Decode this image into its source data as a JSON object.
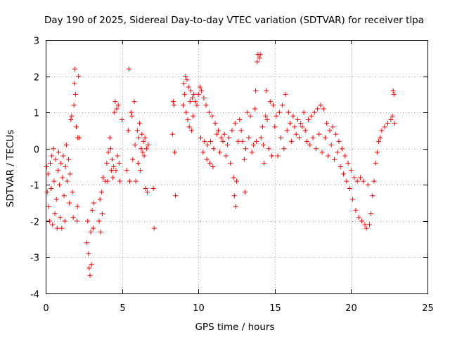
{
  "chart_data": {
    "type": "scatter",
    "title": "Day 190 of 2025, Sidereal Day-to-day VTEC variation (SDTVAR) for receiver tlpa",
    "xlabel": "GPS time / hours",
    "ylabel": "SDTVAR / TECUs",
    "xlim": [
      0,
      25
    ],
    "ylim": [
      -4,
      3
    ],
    "xticks": [
      0,
      5,
      10,
      15,
      20,
      25
    ],
    "yticks": [
      -4,
      -3,
      -2,
      -1,
      0,
      1,
      2,
      3
    ],
    "grid": true,
    "marker": "plus",
    "color": "#ff0000",
    "series": [
      {
        "name": "tlpa",
        "points": [
          [
            0.05,
            -0.5
          ],
          [
            0.1,
            -1.2
          ],
          [
            0.15,
            -0.7
          ],
          [
            0.2,
            -1.6
          ],
          [
            0.25,
            -2.0
          ],
          [
            0.3,
            -0.4
          ],
          [
            0.35,
            -1.1
          ],
          [
            0.4,
            -0.2
          ],
          [
            0.45,
            -2.1
          ],
          [
            0.5,
            0.0
          ],
          [
            0.55,
            -0.9
          ],
          [
            0.6,
            -1.8
          ],
          [
            0.65,
            -0.3
          ],
          [
            0.7,
            -1.4
          ],
          [
            0.75,
            -2.2
          ],
          [
            0.8,
            -0.6
          ],
          [
            0.85,
            -0.1
          ],
          [
            0.9,
            -1.0
          ],
          [
            0.95,
            -1.9
          ],
          [
            1.0,
            -0.4
          ],
          [
            1.05,
            -2.2
          ],
          [
            1.1,
            -0.8
          ],
          [
            1.15,
            -0.2
          ],
          [
            1.2,
            -1.3
          ],
          [
            1.25,
            -2.0
          ],
          [
            1.3,
            -0.5
          ],
          [
            1.35,
            0.1
          ],
          [
            1.4,
            -0.9
          ],
          [
            1.5,
            -0.3
          ],
          [
            1.55,
            -1.5
          ],
          [
            1.6,
            -0.7
          ],
          [
            1.65,
            0.8
          ],
          [
            1.7,
            0.9
          ],
          [
            1.75,
            -1.2
          ],
          [
            1.8,
            -1.9
          ],
          [
            1.85,
            1.2
          ],
          [
            1.88,
            1.8
          ],
          [
            1.9,
            2.2
          ],
          [
            1.95,
            1.5
          ],
          [
            2.0,
            0.6
          ],
          [
            2.05,
            -2.0
          ],
          [
            2.08,
            -1.6
          ],
          [
            2.1,
            0.3
          ],
          [
            2.15,
            2.0
          ],
          [
            2.2,
            0.3
          ],
          [
            2.7,
            -2.6
          ],
          [
            2.75,
            -2.0
          ],
          [
            2.8,
            -2.9
          ],
          [
            2.85,
            -3.3
          ],
          [
            2.9,
            -3.5
          ],
          [
            2.95,
            -2.3
          ],
          [
            3.0,
            -3.2
          ],
          [
            3.05,
            -1.7
          ],
          [
            3.1,
            -2.2
          ],
          [
            3.15,
            -1.5
          ],
          [
            3.5,
            -2.0
          ],
          [
            3.55,
            -1.4
          ],
          [
            3.6,
            -2.3
          ],
          [
            3.65,
            -1.2
          ],
          [
            3.7,
            -1.8
          ],
          [
            3.75,
            -0.8
          ],
          [
            3.9,
            -0.9
          ],
          [
            4.0,
            -0.4
          ],
          [
            4.05,
            -0.9
          ],
          [
            4.1,
            -0.1
          ],
          [
            4.2,
            0.3
          ],
          [
            4.25,
            0.0
          ],
          [
            4.3,
            -0.6
          ],
          [
            4.35,
            -0.3
          ],
          [
            4.4,
            -0.8
          ],
          [
            4.45,
            -0.5
          ],
          [
            4.5,
            1.0
          ],
          [
            4.55,
            1.3
          ],
          [
            4.6,
            -0.6
          ],
          [
            4.65,
            1.1
          ],
          [
            4.7,
            -0.2
          ],
          [
            4.75,
            1.2
          ],
          [
            4.8,
            -0.4
          ],
          [
            4.85,
            -0.9
          ],
          [
            5.0,
            0.8
          ],
          [
            5.3,
            -0.6
          ],
          [
            5.4,
            0.5
          ],
          [
            5.45,
            2.2
          ],
          [
            5.5,
            -0.9
          ],
          [
            5.6,
            1.0
          ],
          [
            5.65,
            0.9
          ],
          [
            5.7,
            -0.3
          ],
          [
            5.8,
            1.3
          ],
          [
            5.85,
            0.1
          ],
          [
            5.9,
            -0.9
          ],
          [
            6.0,
            0.5
          ],
          [
            6.05,
            -0.4
          ],
          [
            6.1,
            0.3
          ],
          [
            6.15,
            0.7
          ],
          [
            6.2,
            -0.6
          ],
          [
            6.25,
            0.0
          ],
          [
            6.3,
            0.4
          ],
          [
            6.35,
            -0.1
          ],
          [
            6.4,
            0.2
          ],
          [
            6.45,
            -0.2
          ],
          [
            6.5,
            0.3
          ],
          [
            6.55,
            -1.1
          ],
          [
            6.6,
            0.0
          ],
          [
            6.65,
            -1.2
          ],
          [
            6.7,
            0.1
          ],
          [
            7.05,
            -1.1
          ],
          [
            7.1,
            -2.2
          ],
          [
            8.3,
            0.4
          ],
          [
            8.35,
            1.3
          ],
          [
            8.4,
            1.2
          ],
          [
            8.45,
            -0.1
          ],
          [
            8.5,
            -1.3
          ],
          [
            9.0,
            1.2
          ],
          [
            9.05,
            1.8
          ],
          [
            9.1,
            1.5
          ],
          [
            9.15,
            2.0
          ],
          [
            9.2,
            1.0
          ],
          [
            9.25,
            1.9
          ],
          [
            9.3,
            0.8
          ],
          [
            9.35,
            1.7
          ],
          [
            9.4,
            0.6
          ],
          [
            9.45,
            1.3
          ],
          [
            9.5,
            1.6
          ],
          [
            9.55,
            0.5
          ],
          [
            9.6,
            1.4
          ],
          [
            9.65,
            0.9
          ],
          [
            9.7,
            1.5
          ],
          [
            9.8,
            1.3
          ],
          [
            9.9,
            1.2
          ],
          [
            10.0,
            1.5
          ],
          [
            10.1,
            1.7
          ],
          [
            10.15,
            0.3
          ],
          [
            10.2,
            1.6
          ],
          [
            10.3,
            -0.1
          ],
          [
            10.35,
            1.4
          ],
          [
            10.4,
            0.2
          ],
          [
            10.5,
            1.2
          ],
          [
            10.55,
            -0.3
          ],
          [
            10.6,
            0.1
          ],
          [
            10.7,
            1.0
          ],
          [
            10.75,
            -0.4
          ],
          [
            10.8,
            0.2
          ],
          [
            10.9,
            0.9
          ],
          [
            10.95,
            -0.5
          ],
          [
            11.0,
            0.0
          ],
          [
            11.1,
            0.7
          ],
          [
            11.2,
            0.4
          ],
          [
            11.3,
            0.5
          ],
          [
            11.4,
            -0.1
          ],
          [
            11.5,
            0.3
          ],
          [
            11.6,
            0.2
          ],
          [
            11.7,
            0.4
          ],
          [
            11.8,
            -0.2
          ],
          [
            11.9,
            0.1
          ],
          [
            12.0,
            0.3
          ],
          [
            12.1,
            -0.4
          ],
          [
            12.2,
            0.5
          ],
          [
            12.3,
            -0.8
          ],
          [
            12.35,
            -1.3
          ],
          [
            12.4,
            0.7
          ],
          [
            12.45,
            -1.6
          ],
          [
            12.5,
            -0.9
          ],
          [
            12.6,
            0.2
          ],
          [
            12.7,
            0.8
          ],
          [
            12.8,
            0.5
          ],
          [
            12.9,
            0.2
          ],
          [
            13.0,
            -0.3
          ],
          [
            13.05,
            -1.2
          ],
          [
            13.1,
            0.0
          ],
          [
            13.2,
            1.0
          ],
          [
            13.3,
            0.3
          ],
          [
            13.4,
            0.9
          ],
          [
            13.5,
            -0.1
          ],
          [
            13.6,
            0.1
          ],
          [
            13.7,
            1.1
          ],
          [
            13.75,
            1.6
          ],
          [
            13.8,
            0.2
          ],
          [
            13.85,
            2.4
          ],
          [
            13.9,
            2.6
          ],
          [
            14.0,
            2.5
          ],
          [
            14.05,
            2.6
          ],
          [
            14.1,
            0.3
          ],
          [
            14.2,
            0.6
          ],
          [
            14.25,
            0.1
          ],
          [
            14.3,
            -0.4
          ],
          [
            14.4,
            0.9
          ],
          [
            14.45,
            1.6
          ],
          [
            14.5,
            0.8
          ],
          [
            14.6,
            0.0
          ],
          [
            14.7,
            1.3
          ],
          [
            14.8,
            -0.2
          ],
          [
            14.9,
            1.2
          ],
          [
            15.0,
            0.6
          ],
          [
            15.1,
            0.9
          ],
          [
            15.2,
            -0.2
          ],
          [
            15.3,
            1.0
          ],
          [
            15.4,
            0.3
          ],
          [
            15.5,
            1.2
          ],
          [
            15.6,
            0.0
          ],
          [
            15.7,
            1.5
          ],
          [
            15.8,
            0.5
          ],
          [
            15.9,
            1.0
          ],
          [
            16.0,
            0.7
          ],
          [
            16.1,
            0.2
          ],
          [
            16.2,
            0.9
          ],
          [
            16.3,
            0.6
          ],
          [
            16.4,
            0.4
          ],
          [
            16.5,
            0.8
          ],
          [
            16.6,
            0.3
          ],
          [
            16.7,
            0.7
          ],
          [
            16.8,
            0.6
          ],
          [
            16.9,
            1.0
          ],
          [
            17.0,
            0.5
          ],
          [
            17.1,
            0.2
          ],
          [
            17.2,
            0.8
          ],
          [
            17.3,
            0.1
          ],
          [
            17.4,
            0.9
          ],
          [
            17.5,
            0.3
          ],
          [
            17.6,
            1.0
          ],
          [
            17.7,
            0.0
          ],
          [
            17.8,
            1.1
          ],
          [
            17.9,
            0.4
          ],
          [
            18.0,
            1.2
          ],
          [
            18.1,
            -0.1
          ],
          [
            18.2,
            1.1
          ],
          [
            18.3,
            0.3
          ],
          [
            18.4,
            0.7
          ],
          [
            18.5,
            -0.2
          ],
          [
            18.6,
            0.5
          ],
          [
            18.7,
            0.1
          ],
          [
            18.8,
            0.6
          ],
          [
            18.9,
            -0.3
          ],
          [
            19.0,
            0.4
          ],
          [
            19.1,
            -0.1
          ],
          [
            19.2,
            0.2
          ],
          [
            19.3,
            -0.5
          ],
          [
            19.4,
            0.0
          ],
          [
            19.5,
            -0.7
          ],
          [
            19.6,
            -0.2
          ],
          [
            19.7,
            -0.9
          ],
          [
            19.8,
            -0.4
          ],
          [
            19.9,
            -1.1
          ],
          [
            20.0,
            -0.6
          ],
          [
            20.1,
            -1.4
          ],
          [
            20.2,
            -0.8
          ],
          [
            20.3,
            -1.7
          ],
          [
            20.4,
            -0.9
          ],
          [
            20.5,
            -1.9
          ],
          [
            20.6,
            -0.8
          ],
          [
            20.7,
            -2.0
          ],
          [
            20.8,
            -0.9
          ],
          [
            20.9,
            -2.1
          ],
          [
            21.0,
            -2.2
          ],
          [
            21.1,
            -1.0
          ],
          [
            21.2,
            -2.1
          ],
          [
            21.3,
            -1.8
          ],
          [
            21.4,
            -1.3
          ],
          [
            21.5,
            -0.9
          ],
          [
            21.6,
            -0.4
          ],
          [
            21.7,
            -0.1
          ],
          [
            21.8,
            0.2
          ],
          [
            21.9,
            0.3
          ],
          [
            22.0,
            0.5
          ],
          [
            22.2,
            0.6
          ],
          [
            22.4,
            0.7
          ],
          [
            22.6,
            0.8
          ],
          [
            22.7,
            0.9
          ],
          [
            22.75,
            1.6
          ],
          [
            22.8,
            1.5
          ],
          [
            22.85,
            0.7
          ]
        ]
      }
    ]
  }
}
